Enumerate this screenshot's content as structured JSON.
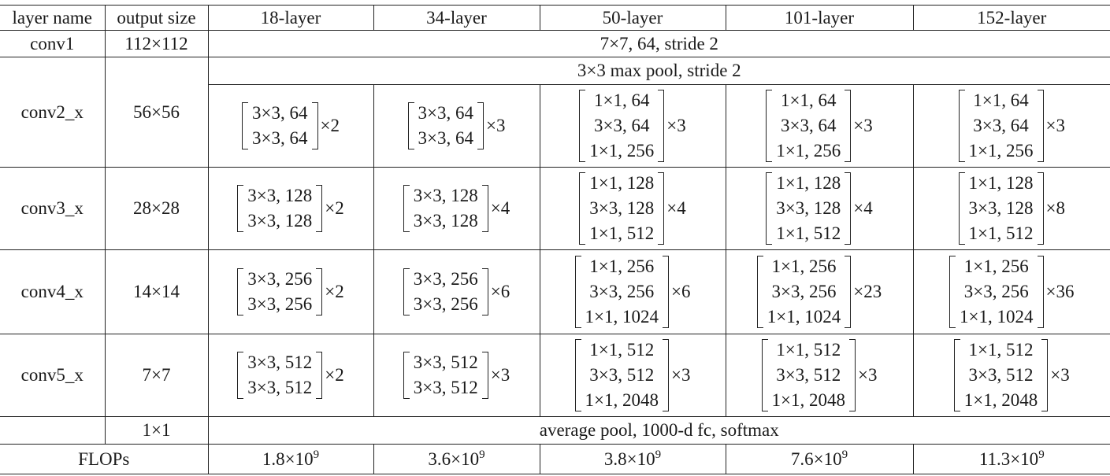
{
  "headers": [
    "layer name",
    "output size",
    "18-layer",
    "34-layer",
    "50-layer",
    "101-layer",
    "152-layer"
  ],
  "conv1": {
    "name": "conv1",
    "size": "112×112",
    "spec": "7×7, 64, stride 2"
  },
  "pool": {
    "spec": "3×3 max pool, stride 2"
  },
  "stages": [
    {
      "name": "conv2_x",
      "size": "56×56",
      "cells": [
        {
          "lines": [
            "3×3, 64",
            "3×3, 64"
          ],
          "mult": "×2"
        },
        {
          "lines": [
            "3×3, 64",
            "3×3, 64"
          ],
          "mult": "×3"
        },
        {
          "lines": [
            "1×1, 64",
            "3×3, 64",
            "1×1, 256"
          ],
          "mult": "×3"
        },
        {
          "lines": [
            "1×1, 64",
            "3×3, 64",
            "1×1, 256"
          ],
          "mult": "×3"
        },
        {
          "lines": [
            "1×1, 64",
            "3×3, 64",
            "1×1, 256"
          ],
          "mult": "×3"
        }
      ]
    },
    {
      "name": "conv3_x",
      "size": "28×28",
      "cells": [
        {
          "lines": [
            "3×3, 128",
            "3×3, 128"
          ],
          "mult": "×2"
        },
        {
          "lines": [
            "3×3, 128",
            "3×3, 128"
          ],
          "mult": "×4"
        },
        {
          "lines": [
            "1×1, 128",
            "3×3, 128",
            "1×1, 512"
          ],
          "mult": "×4"
        },
        {
          "lines": [
            "1×1, 128",
            "3×3, 128",
            "1×1, 512"
          ],
          "mult": "×4"
        },
        {
          "lines": [
            "1×1, 128",
            "3×3, 128",
            "1×1, 512"
          ],
          "mult": "×8"
        }
      ]
    },
    {
      "name": "conv4_x",
      "size": "14×14",
      "cells": [
        {
          "lines": [
            "3×3, 256",
            "3×3, 256"
          ],
          "mult": "×2"
        },
        {
          "lines": [
            "3×3, 256",
            "3×3, 256"
          ],
          "mult": "×6"
        },
        {
          "lines": [
            "1×1, 256",
            "3×3, 256",
            "1×1, 1024"
          ],
          "mult": "×6"
        },
        {
          "lines": [
            "1×1, 256",
            "3×3, 256",
            "1×1, 1024"
          ],
          "mult": "×23"
        },
        {
          "lines": [
            "1×1, 256",
            "3×3, 256",
            "1×1, 1024"
          ],
          "mult": "×36"
        }
      ]
    },
    {
      "name": "conv5_x",
      "size": "7×7",
      "cells": [
        {
          "lines": [
            "3×3, 512",
            "3×3, 512"
          ],
          "mult": "×2"
        },
        {
          "lines": [
            "3×3, 512",
            "3×3, 512"
          ],
          "mult": "×3"
        },
        {
          "lines": [
            "1×1, 512",
            "3×3, 512",
            "1×1, 2048"
          ],
          "mult": "×3"
        },
        {
          "lines": [
            "1×1, 512",
            "3×3, 512",
            "1×1, 2048"
          ],
          "mult": "×3"
        },
        {
          "lines": [
            "1×1, 512",
            "3×3, 512",
            "1×1, 2048"
          ],
          "mult": "×3"
        }
      ]
    }
  ],
  "fc": {
    "size": "1×1",
    "spec": "average pool, 1000-d fc, softmax"
  },
  "flops": {
    "label": "FLOPs",
    "values": [
      {
        "mantissa": "1.8×10",
        "exp": "9"
      },
      {
        "mantissa": "3.6×10",
        "exp": "9"
      },
      {
        "mantissa": "3.8×10",
        "exp": "9"
      },
      {
        "mantissa": "7.6×10",
        "exp": "9"
      },
      {
        "mantissa": "11.3×10",
        "exp": "9"
      }
    ]
  }
}
